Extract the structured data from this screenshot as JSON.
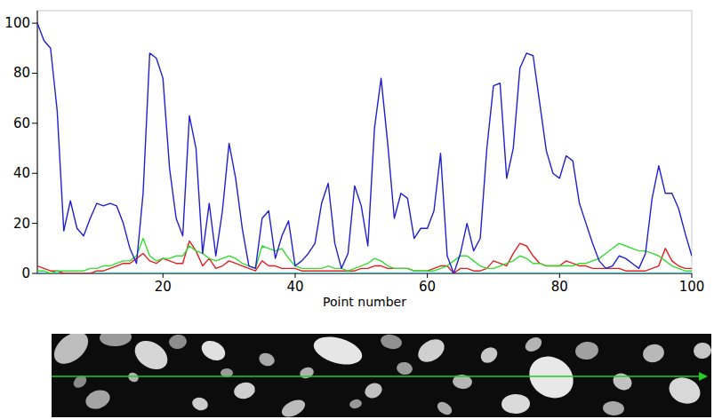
{
  "chart_data": {
    "type": "line",
    "x_label": "Point number",
    "x": [
      1,
      2,
      3,
      4,
      5,
      6,
      7,
      8,
      9,
      10,
      11,
      12,
      13,
      14,
      15,
      16,
      17,
      18,
      19,
      20,
      21,
      22,
      23,
      24,
      25,
      26,
      27,
      28,
      29,
      30,
      31,
      32,
      33,
      34,
      35,
      36,
      37,
      38,
      39,
      40,
      41,
      42,
      43,
      44,
      45,
      46,
      47,
      48,
      49,
      50,
      51,
      52,
      53,
      54,
      55,
      56,
      57,
      58,
      59,
      60,
      61,
      62,
      63,
      64,
      65,
      66,
      67,
      68,
      69,
      70,
      71,
      72,
      73,
      74,
      75,
      76,
      77,
      78,
      79,
      80,
      81,
      82,
      83,
      84,
      85,
      86,
      87,
      88,
      89,
      90,
      91,
      92,
      93,
      94,
      95,
      96,
      97,
      98,
      99,
      100
    ],
    "xlim": [
      1,
      100
    ],
    "xticks": [
      20,
      40,
      60,
      80,
      100
    ],
    "ylim": [
      0,
      105
    ],
    "yticks": [
      0,
      20,
      40,
      60,
      80,
      100
    ],
    "grid": false,
    "series": [
      {
        "color": "#2020d0",
        "values": [
          100,
          93,
          90,
          65,
          17,
          29,
          18,
          15,
          22,
          28,
          27,
          28,
          27,
          20,
          10,
          4,
          32,
          88,
          86,
          78,
          42,
          22,
          15,
          63,
          50,
          8,
          28,
          7,
          25,
          52,
          38,
          18,
          3,
          2,
          22,
          25,
          6,
          15,
          21,
          3,
          5,
          8,
          12,
          28,
          36,
          12,
          2,
          8,
          35,
          27,
          11,
          58,
          78,
          52,
          22,
          32,
          30,
          14,
          18,
          18,
          25,
          48,
          7,
          0,
          8,
          20,
          9,
          14,
          50,
          75,
          76,
          38,
          50,
          82,
          88,
          87,
          68,
          49,
          40,
          38,
          47,
          45,
          28,
          20,
          12,
          5,
          2,
          3,
          7,
          6,
          4,
          2,
          8,
          30,
          43,
          32,
          32,
          26,
          16,
          7
        ]
      },
      {
        "color": "#33dd33",
        "values": [
          1,
          1,
          0,
          1,
          1,
          1,
          1,
          1,
          2,
          2,
          3,
          3,
          4,
          5,
          5,
          7,
          14,
          7,
          5,
          6,
          6,
          7,
          7,
          11,
          9,
          8,
          6,
          5,
          6,
          7,
          6,
          4,
          3,
          2,
          11,
          10,
          9,
          10,
          6,
          3,
          2,
          2,
          2,
          2,
          3,
          2,
          2,
          1,
          2,
          3,
          4,
          6,
          5,
          3,
          2,
          2,
          2,
          1,
          1,
          1,
          1,
          2,
          3,
          5,
          7,
          7,
          5,
          3,
          2,
          2,
          3,
          4,
          5,
          7,
          6,
          4,
          4,
          3,
          3,
          3,
          3,
          3,
          4,
          4,
          5,
          6,
          8,
          10,
          12,
          11,
          10,
          9,
          9,
          8,
          7,
          5,
          3,
          2,
          1,
          1
        ]
      },
      {
        "color": "#e02020",
        "values": [
          3,
          2,
          1,
          1,
          0,
          0,
          0,
          0,
          0,
          1,
          1,
          2,
          3,
          4,
          4,
          6,
          8,
          5,
          4,
          6,
          5,
          4,
          4,
          13,
          9,
          3,
          6,
          2,
          3,
          5,
          4,
          3,
          2,
          1,
          5,
          3,
          3,
          2,
          2,
          2,
          1,
          1,
          1,
          1,
          1,
          1,
          1,
          1,
          1,
          2,
          2,
          3,
          3,
          2,
          2,
          2,
          2,
          1,
          1,
          1,
          2,
          3,
          3,
          0,
          2,
          2,
          1,
          1,
          2,
          5,
          4,
          3,
          8,
          12,
          11,
          7,
          4,
          3,
          3,
          3,
          5,
          4,
          3,
          3,
          2,
          2,
          2,
          2,
          2,
          1,
          1,
          1,
          1,
          2,
          3,
          10,
          5,
          3,
          2,
          2
        ]
      },
      {
        "color": "#00cccc",
        "values": [
          0,
          0,
          0,
          0,
          0,
          0,
          0,
          0,
          0,
          0,
          0,
          0,
          0,
          0,
          0,
          0,
          0,
          0,
          0,
          0,
          0,
          0,
          0,
          0,
          0,
          0,
          0,
          0,
          0,
          0,
          0,
          0,
          0,
          0,
          0,
          0,
          0,
          0,
          0,
          0,
          0,
          0,
          0,
          0,
          0,
          0,
          0,
          0,
          0,
          0,
          0,
          0,
          0,
          0,
          0,
          0,
          0,
          0,
          0,
          0,
          0,
          0,
          0,
          0,
          0,
          0,
          0,
          0,
          0,
          0,
          0,
          0,
          0,
          0,
          0,
          0,
          0,
          0,
          0,
          0,
          0,
          0,
          0,
          0,
          0,
          0,
          0,
          0,
          0,
          0,
          0,
          0,
          0,
          0,
          0,
          0,
          0,
          0,
          0,
          0
        ]
      }
    ]
  }
}
